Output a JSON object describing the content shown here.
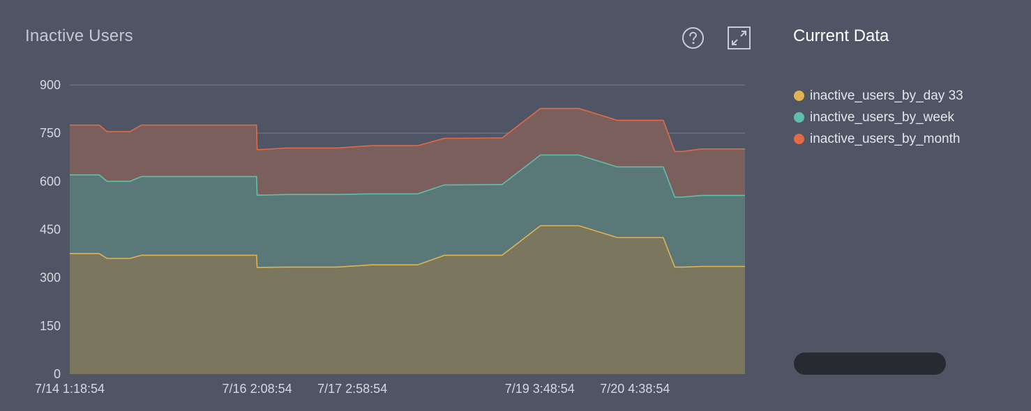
{
  "header": {
    "title": "Inactive Users",
    "help_icon": "question-circle-icon",
    "expand_icon": "expand-arrows-icon"
  },
  "legend": {
    "title": "Current Data",
    "items": [
      {
        "label": "inactive_users_by_day 33",
        "color": "#e2b354"
      },
      {
        "label": "inactive_users_by_week",
        "color": "#5fbfaa"
      },
      {
        "label": "inactive_users_by_month",
        "color": "#df6b48"
      }
    ]
  },
  "chart_data": {
    "type": "area",
    "title": "Inactive Users",
    "xlabel": "",
    "ylabel": "",
    "stacked": true,
    "grid": true,
    "legend_position": "right",
    "ylim": [
      0,
      900
    ],
    "yticks": [
      0,
      150,
      300,
      450,
      600,
      750,
      900
    ],
    "xlim": [
      "7/14 1:18:54",
      "7/21 9:19:00"
    ],
    "xticks": [
      "7/14 1:18:54",
      "7/16 2:08:54",
      "7/17 2:58:54",
      "7/19 3:48:54",
      "7/20 4:38:54"
    ],
    "x": [
      "7/14 1:18:54",
      "7/14 9:00",
      "7/14 11:00",
      "7/14 17:00",
      "7/14 20:00",
      "7/15 3:00",
      "7/15 11:00",
      "7/15 17:00",
      "7/16 2:00",
      "7/16 2:08:54",
      "7/16 3:00",
      "7/16 10:00",
      "7/16 13:00",
      "7/16 21:00",
      "7/16 23:00",
      "7/17 8:00",
      "7/17 13:00",
      "7/17 18:00",
      "7/17 20:00",
      "7/18 3:00",
      "7/18 5:00",
      "7/18 17:00",
      "7/18 18:00",
      "7/19 4:00",
      "7/19 13:00",
      "7/19 14:00",
      "7/20 0:00",
      "7/20 1:00",
      "7/20 11:00",
      "7/20 12:00",
      "7/20 15:00",
      "7/20 17:00",
      "7/20 22:00",
      "7/21 9:19:00"
    ],
    "series": [
      {
        "name": "inactive_users_by_day 33",
        "color": "#e2b354",
        "values": [
          375,
          375,
          360,
          360,
          370,
          370,
          370,
          370,
          370,
          332,
          332,
          333,
          333,
          333,
          333,
          340,
          340,
          340,
          340,
          370,
          370,
          370,
          370,
          462,
          462,
          462,
          425,
          425,
          425,
          425,
          333,
          333,
          335,
          335
        ]
      },
      {
        "name": "inactive_users_by_week",
        "color": "#5fbfaa",
        "values": [
          245,
          245,
          240,
          240,
          245,
          245,
          245,
          245,
          245,
          225,
          225,
          226,
          226,
          226,
          226,
          221,
          221,
          221,
          221,
          219,
          219,
          220,
          220,
          220,
          220,
          220,
          220,
          220,
          220,
          220,
          218,
          218,
          221,
          221
        ]
      },
      {
        "name": "inactive_users_by_month",
        "color": "#df6b48",
        "values": [
          155,
          155,
          155,
          155,
          160,
          160,
          160,
          160,
          160,
          142,
          142,
          145,
          145,
          145,
          145,
          150,
          150,
          150,
          150,
          145,
          145,
          145,
          145,
          145,
          145,
          145,
          145,
          145,
          145,
          145,
          142,
          142,
          145,
          145
        ]
      }
    ]
  }
}
